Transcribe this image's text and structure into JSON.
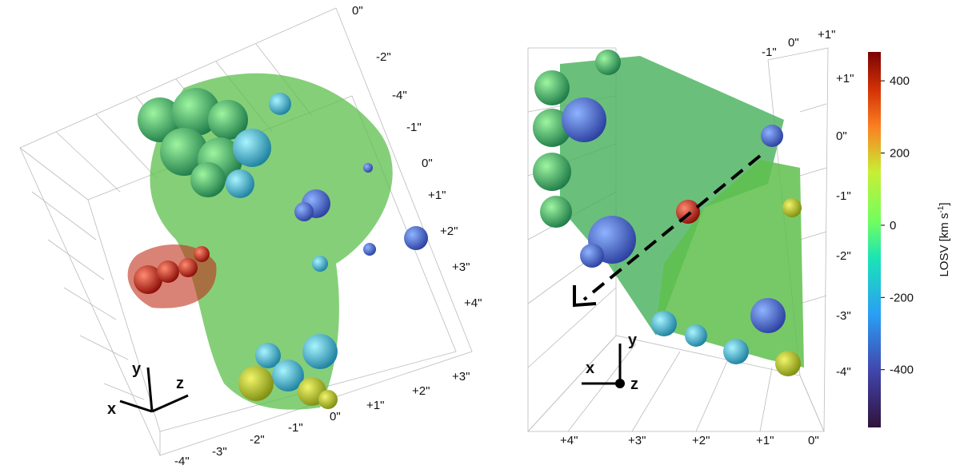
{
  "left_panel": {
    "axis_labels_right": [
      "0\"",
      "-2\"",
      "-4\"",
      "-1\"",
      "0\"",
      "+1\"",
      "+2\"",
      "+3\"",
      "+4\""
    ],
    "axis_labels_bottom_right": [
      "+3\"",
      "+2\"",
      "+1\"",
      "0\""
    ],
    "axis_labels_bottom": [
      "-1\"",
      "-2\"",
      "-3\"",
      "-4\""
    ],
    "triad": {
      "y": "y",
      "z": "z",
      "x": "x"
    }
  },
  "right_panel": {
    "axis_labels_top": [
      "-1\"",
      "0\"",
      "+1\""
    ],
    "axis_labels_right": [
      "+1\"",
      "0\"",
      "-1\"",
      "-2\"",
      "-3\"",
      "-4\""
    ],
    "axis_labels_bottom": [
      "+4\"",
      "+3\"",
      "+2\"",
      "+1\"",
      "0\""
    ],
    "triad": {
      "y": "y",
      "x": "x",
      "z": "z"
    }
  },
  "colorbar": {
    "label": {
      "main": "LOSV [km s",
      "sup": "-1",
      "end": "]"
    },
    "clim": [
      -560,
      480
    ],
    "ticks": [
      400,
      200,
      0,
      -200,
      -400
    ]
  }
}
